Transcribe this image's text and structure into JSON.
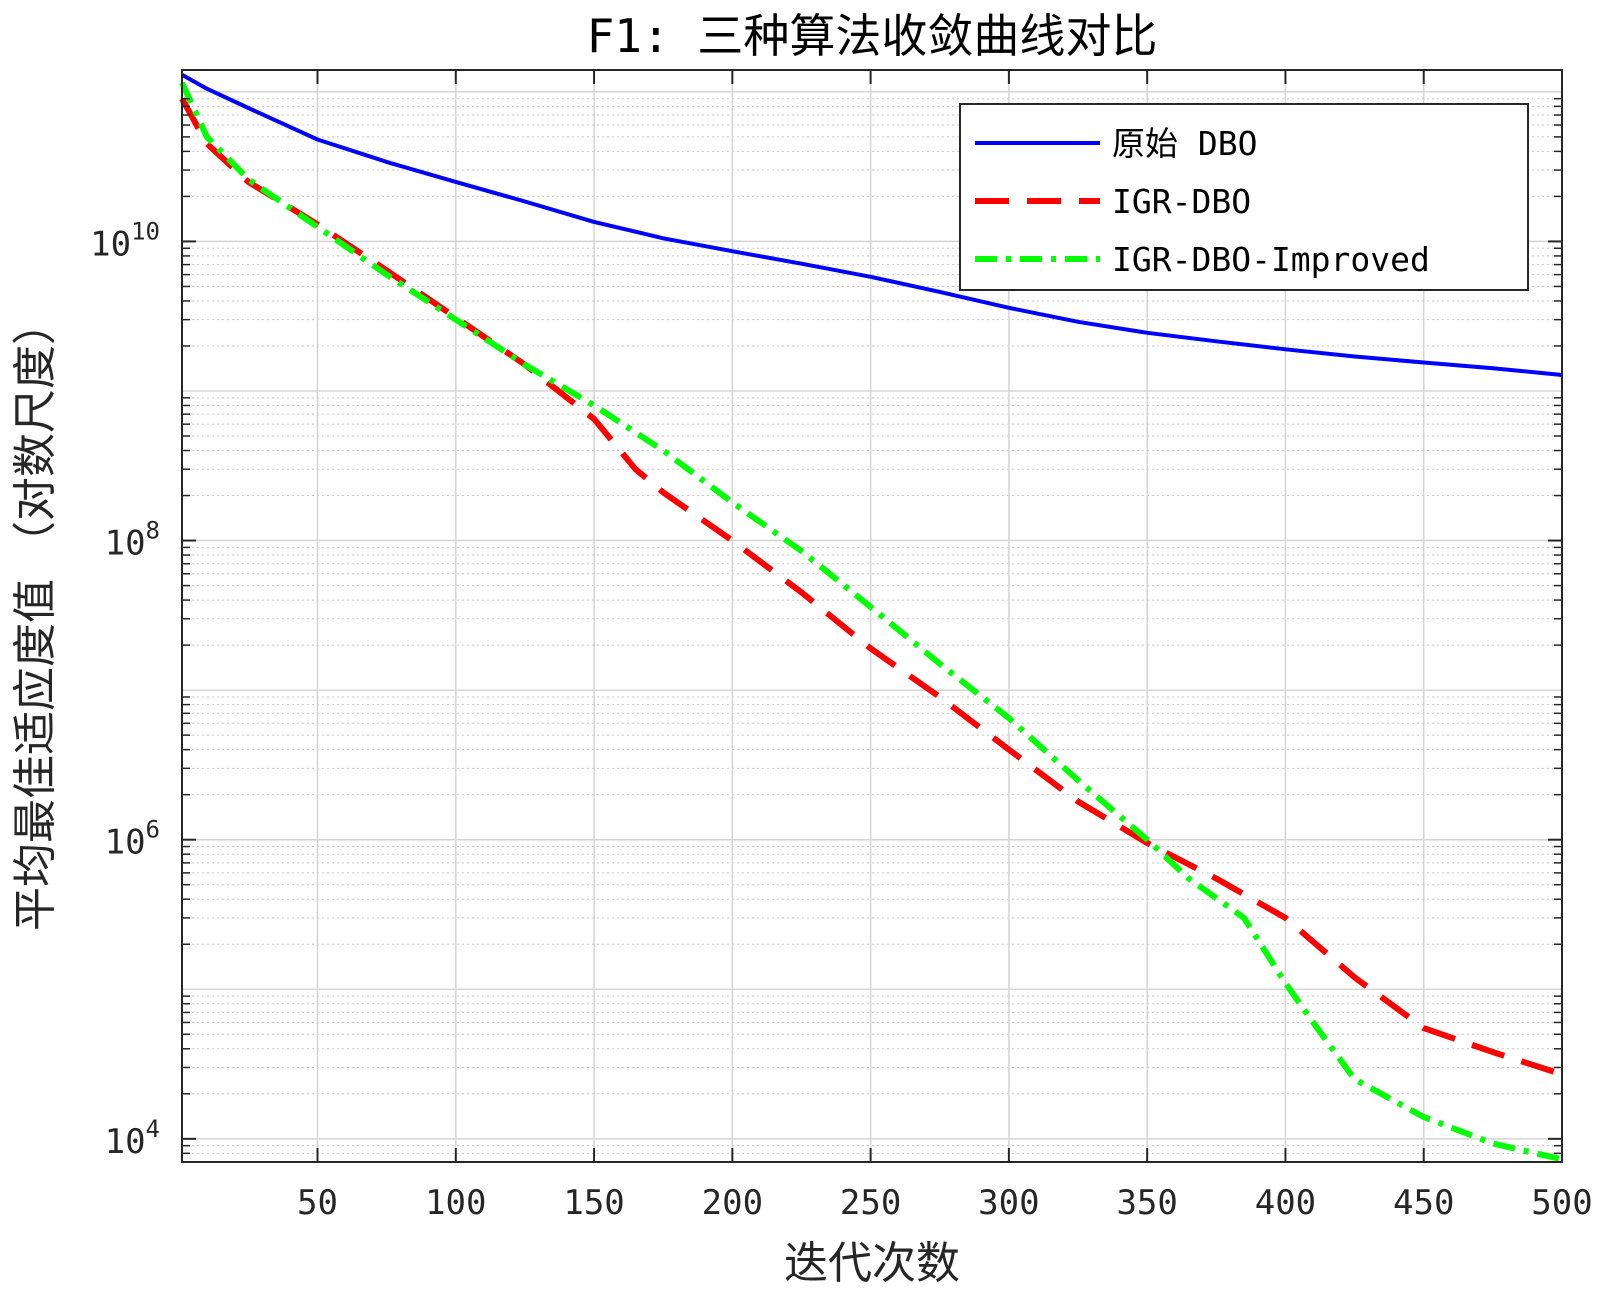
{
  "chart_data": {
    "type": "line",
    "title": "F1: 三种算法收敛曲线对比",
    "xlabel": "迭代次数",
    "ylabel": "平均最佳适应度值 （对数尺度）",
    "xlim": [
      1,
      500
    ],
    "ylim": [
      7000,
      140000000000
    ],
    "y_scale": "log",
    "grid": true,
    "minor_grid": true,
    "legend_position": "top-right",
    "x_ticks": [
      50,
      100,
      150,
      200,
      250,
      300,
      350,
      400,
      450,
      500
    ],
    "x_tick_labels": [
      "50",
      "100",
      "150",
      "200",
      "250",
      "300",
      "350",
      "400",
      "450",
      "500"
    ],
    "y_ticks": [
      {
        "value": 10000,
        "base": "10",
        "exp": "4"
      },
      {
        "value": 1000000,
        "base": "10",
        "exp": "6"
      },
      {
        "value": 100000000,
        "base": "10",
        "exp": "8"
      },
      {
        "value": 10000000000,
        "base": "10",
        "exp": "10"
      }
    ],
    "series": [
      {
        "name": "原始 DBO",
        "color": "#0000ff",
        "style": "solid",
        "x": [
          1,
          10,
          25,
          50,
          75,
          100,
          125,
          150,
          175,
          200,
          225,
          250,
          275,
          300,
          325,
          350,
          375,
          400,
          425,
          450,
          475,
          500
        ],
        "y": [
          130000000000,
          105000000000,
          78000000000,
          48000000000,
          34000000000,
          25000000000,
          18500000000,
          13500000000,
          10500000000,
          8600000000,
          7100000000,
          5800000000,
          4600000000,
          3600000000,
          2900000000,
          2450000000,
          2150000000,
          1900000000,
          1700000000,
          1550000000,
          1420000000,
          1280000000
        ]
      },
      {
        "name": "IGR-DBO",
        "color": "#ff0000",
        "style": "dashed",
        "x": [
          1,
          10,
          25,
          50,
          75,
          100,
          125,
          150,
          165,
          175,
          200,
          225,
          250,
          275,
          300,
          325,
          350,
          375,
          400,
          425,
          450,
          475,
          500
        ],
        "y": [
          90000000000,
          45000000000,
          25000000000,
          13000000000,
          6400000000,
          3100000000,
          1500000000,
          650000000,
          300000000,
          210000000,
          100000000,
          45000000,
          19000000,
          9000000,
          4000000,
          1800000,
          950000,
          550000,
          300000,
          120000,
          55000,
          38000,
          27000
        ]
      },
      {
        "name": "IGR-DBO-Improved",
        "color": "#00ff00",
        "style": "dash-dot",
        "x": [
          1,
          10,
          25,
          50,
          75,
          100,
          125,
          150,
          175,
          200,
          225,
          250,
          275,
          300,
          325,
          350,
          365,
          385,
          400,
          410,
          425,
          450,
          475,
          500
        ],
        "y": [
          115000000000,
          50000000000,
          26000000000,
          12500000000,
          6000000000,
          3000000000,
          1500000000,
          800000000,
          400000000,
          180000000,
          85000000,
          36000000,
          15000000,
          6500000,
          2500000,
          1000000,
          550000,
          300000,
          110000,
          60000,
          25000,
          14000,
          9300,
          7300
        ]
      }
    ]
  }
}
